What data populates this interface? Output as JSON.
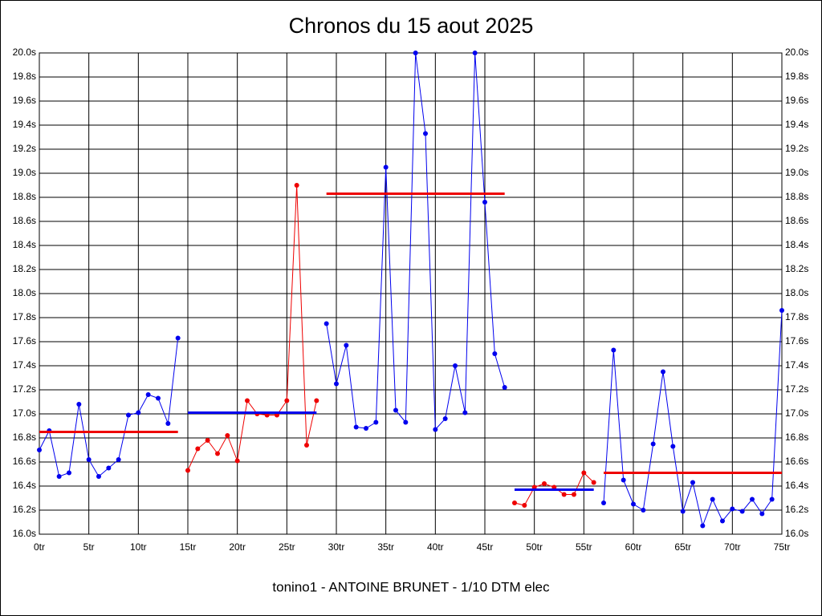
{
  "chart_data": {
    "type": "line",
    "title": "Chronos du 15 aout 2025",
    "subtitle": "tonino1 - ANTOINE BRUNET - 1/10 DTM elec",
    "xlim": [
      0,
      75
    ],
    "ylim": [
      16.0,
      20.0
    ],
    "grid": true,
    "xticks": [
      {
        "value": 0,
        "label": "0tr"
      },
      {
        "value": 5,
        "label": "5tr"
      },
      {
        "value": 10,
        "label": "10tr"
      },
      {
        "value": 15,
        "label": "15tr"
      },
      {
        "value": 20,
        "label": "20tr"
      },
      {
        "value": 25,
        "label": "25tr"
      },
      {
        "value": 30,
        "label": "30tr"
      },
      {
        "value": 35,
        "label": "35tr"
      },
      {
        "value": 40,
        "label": "40tr"
      },
      {
        "value": 45,
        "label": "45tr"
      },
      {
        "value": 50,
        "label": "50tr"
      },
      {
        "value": 55,
        "label": "55tr"
      },
      {
        "value": 60,
        "label": "60tr"
      },
      {
        "value": 65,
        "label": "65tr"
      },
      {
        "value": 70,
        "label": "70tr"
      },
      {
        "value": 75,
        "label": "75tr"
      }
    ],
    "yticks": [
      {
        "value": 16.0,
        "label": "16.0s"
      },
      {
        "value": 16.2,
        "label": "16.2s"
      },
      {
        "value": 16.4,
        "label": "16.4s"
      },
      {
        "value": 16.6,
        "label": "16.6s"
      },
      {
        "value": 16.8,
        "label": "16.8s"
      },
      {
        "value": 17.0,
        "label": "17.0s"
      },
      {
        "value": 17.2,
        "label": "17.2s"
      },
      {
        "value": 17.4,
        "label": "17.4s"
      },
      {
        "value": 17.6,
        "label": "17.6s"
      },
      {
        "value": 17.8,
        "label": "17.8s"
      },
      {
        "value": 18.0,
        "label": "18.0s"
      },
      {
        "value": 18.2,
        "label": "18.2s"
      },
      {
        "value": 18.4,
        "label": "18.4s"
      },
      {
        "value": 18.6,
        "label": "18.6s"
      },
      {
        "value": 18.8,
        "label": "18.8s"
      },
      {
        "value": 19.0,
        "label": "19.0s"
      },
      {
        "value": 19.2,
        "label": "19.2s"
      },
      {
        "value": 19.4,
        "label": "19.4s"
      },
      {
        "value": 19.6,
        "label": "19.6s"
      },
      {
        "value": 19.8,
        "label": "19.8s"
      },
      {
        "value": 20.0,
        "label": "20.0s"
      }
    ],
    "series": [
      {
        "color": "#0000ee",
        "x": [
          0,
          1,
          2,
          3,
          4,
          5,
          6,
          7,
          8,
          9,
          10,
          11,
          12,
          13,
          14
        ],
        "values": [
          16.7,
          16.86,
          16.48,
          16.51,
          17.08,
          16.62,
          16.48,
          16.55,
          16.62,
          16.99,
          17.01,
          17.16,
          17.13,
          16.92,
          17.63
        ]
      },
      {
        "color": "#ee0000",
        "x": [
          15,
          16,
          17,
          18,
          19,
          20,
          21,
          22,
          23,
          24,
          25,
          26,
          27,
          28
        ],
        "values": [
          16.53,
          16.71,
          16.78,
          16.67,
          16.82,
          16.61,
          17.11,
          17.0,
          16.99,
          16.99,
          17.11,
          18.9,
          16.74,
          17.11
        ]
      },
      {
        "color": "#0000ee",
        "x": [
          29,
          30,
          31,
          32,
          33,
          34,
          35,
          36,
          37,
          38,
          39,
          40,
          41,
          42,
          43,
          44,
          45,
          46,
          47
        ],
        "values": [
          17.75,
          17.25,
          17.57,
          16.89,
          16.88,
          16.93,
          19.05,
          17.03,
          16.93,
          20.0,
          19.33,
          16.87,
          16.96,
          17.4,
          17.01,
          20.0,
          18.76,
          17.5,
          17.22
        ]
      },
      {
        "color": "#ee0000",
        "x": [
          48,
          49,
          50,
          51,
          52,
          53,
          54,
          55,
          56
        ],
        "values": [
          16.26,
          16.24,
          16.39,
          16.42,
          16.39,
          16.33,
          16.33,
          16.51,
          16.43
        ]
      },
      {
        "color": "#0000ee",
        "x": [
          57,
          58,
          59,
          60,
          61,
          62,
          63,
          64,
          65,
          66,
          67,
          68,
          69,
          70,
          71,
          72,
          73,
          74,
          75
        ],
        "values": [
          16.26,
          17.53,
          16.45,
          16.25,
          16.2,
          16.75,
          17.35,
          16.73,
          16.19,
          16.43,
          16.07,
          16.29,
          16.11,
          16.21,
          16.19,
          16.29,
          16.17,
          16.29,
          17.86
        ]
      }
    ],
    "mean_lines": [
      {
        "color": "#ee0000",
        "x": [
          0,
          14
        ],
        "value": 16.85
      },
      {
        "color": "#0000ee",
        "x": [
          15,
          28
        ],
        "value": 17.01
      },
      {
        "color": "#ee0000",
        "x": [
          29,
          47
        ],
        "value": 18.83
      },
      {
        "color": "#0000ee",
        "x": [
          48,
          56
        ],
        "value": 16.37
      },
      {
        "color": "#ee0000",
        "x": [
          57,
          75
        ],
        "value": 16.51
      }
    ]
  }
}
